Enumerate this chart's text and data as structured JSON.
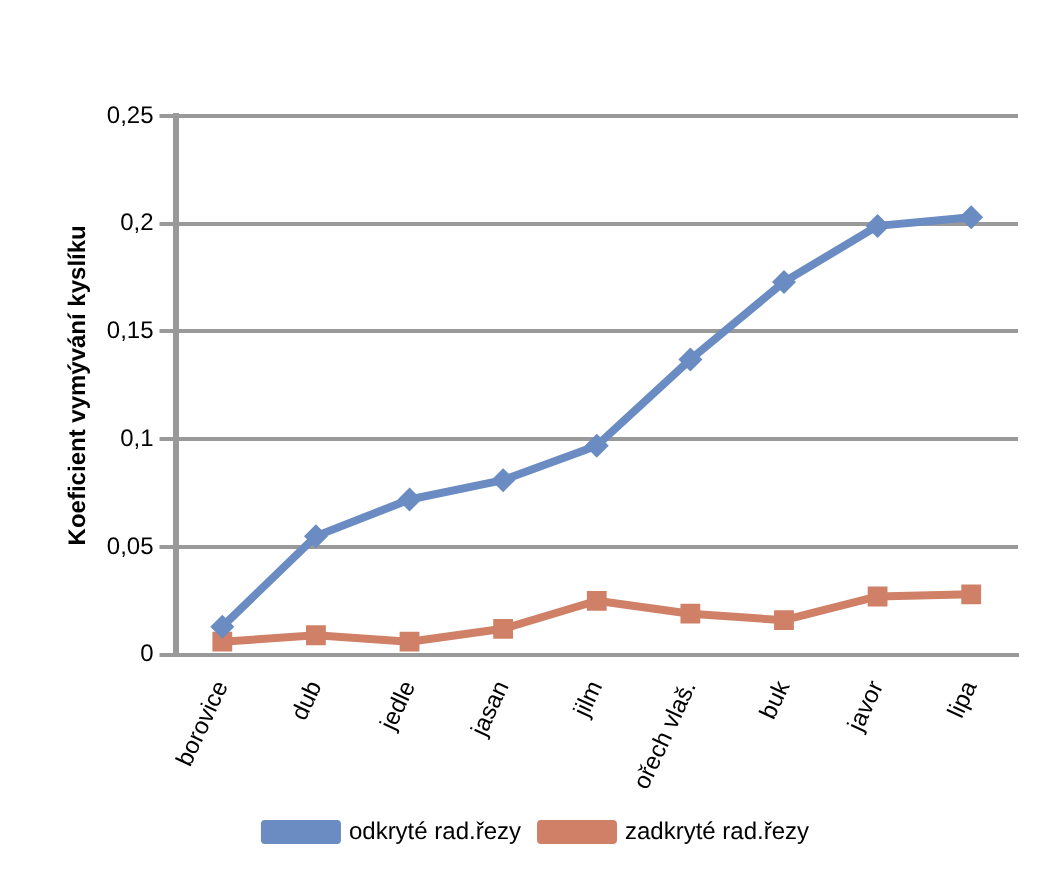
{
  "chart_data": {
    "type": "line",
    "ylabel": "Koeficient vymývání kyslíku",
    "categories": [
      "borovice",
      "dub",
      "jedle",
      "jasan",
      "jilm",
      "ořech vlaš.",
      "buk",
      "javor",
      "lipa"
    ],
    "series": [
      {
        "name": "odkryté rad.řezy",
        "color": "#6a8cc2",
        "marker": "diamond",
        "values": [
          0.013,
          0.055,
          0.072,
          0.081,
          0.097,
          0.137,
          0.173,
          0.199,
          0.203
        ]
      },
      {
        "name": "zadkryté rad.řezy",
        "color": "#cf8066",
        "marker": "square",
        "values": [
          0.006,
          0.009,
          0.006,
          0.012,
          0.025,
          0.019,
          0.016,
          0.027,
          0.028
        ]
      }
    ],
    "ylim": [
      0,
      0.25
    ],
    "yticks": [
      0,
      {
        "value": 0.05,
        "label": "0,05"
      },
      {
        "value": 0.1,
        "label": "0,1"
      },
      {
        "value": 0.15,
        "label": "0,15"
      },
      {
        "value": 0.2,
        "label": "0,2"
      },
      {
        "value": 0.25,
        "label": "0,25"
      }
    ],
    "grid": "y",
    "legend": "bottom",
    "line_style": "solid"
  }
}
